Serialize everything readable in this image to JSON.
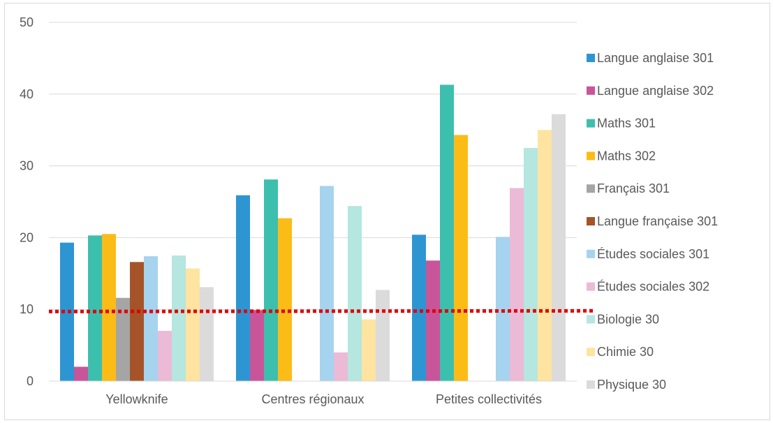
{
  "chart_data": {
    "type": "bar",
    "title": "",
    "xlabel": "",
    "ylabel": "",
    "ylim": [
      0,
      50
    ],
    "yticks": [
      0,
      10,
      20,
      30,
      40,
      50
    ],
    "grid": true,
    "legend_position": "right",
    "categories": [
      "Yellowknife",
      "Centres régionaux",
      "Petites collectivités"
    ],
    "reference_line": {
      "value": 9.7,
      "color": "#e00000",
      "style": "dotted"
    },
    "series": [
      {
        "name": "Langue anglaise 301",
        "color": "#2e95d3",
        "values": [
          19.3,
          25.9,
          20.4
        ]
      },
      {
        "name": "Langue anglaise 302",
        "color": "#c8559a",
        "values": [
          2.0,
          9.9,
          16.8
        ]
      },
      {
        "name": "Maths 301",
        "color": "#3dbfae",
        "values": [
          20.3,
          28.1,
          41.3
        ]
      },
      {
        "name": "Maths 302",
        "color": "#fbbc18",
        "values": [
          20.5,
          22.7,
          34.3
        ]
      },
      {
        "name": "Français 301",
        "color": "#a5a5a5",
        "values": [
          11.6,
          null,
          null
        ]
      },
      {
        "name": "Langue française 301",
        "color": "#a5542a",
        "values": [
          16.6,
          null,
          null
        ]
      },
      {
        "name": "Études sociales 301",
        "color": "#a6d3ee",
        "values": [
          17.4,
          27.2,
          20.1
        ]
      },
      {
        "name": "Études sociales 302",
        "color": "#ebbad6",
        "values": [
          7.0,
          4.0,
          26.9
        ]
      },
      {
        "name": "Biologie 30",
        "color": "#b5e6df",
        "values": [
          17.5,
          24.4,
          32.5
        ]
      },
      {
        "name": "Chimie 30",
        "color": "#fee4a0",
        "values": [
          15.7,
          8.6,
          35.0
        ]
      },
      {
        "name": "Physique 30",
        "color": "#dbdbdb",
        "values": [
          13.1,
          12.7,
          37.2
        ]
      }
    ]
  }
}
